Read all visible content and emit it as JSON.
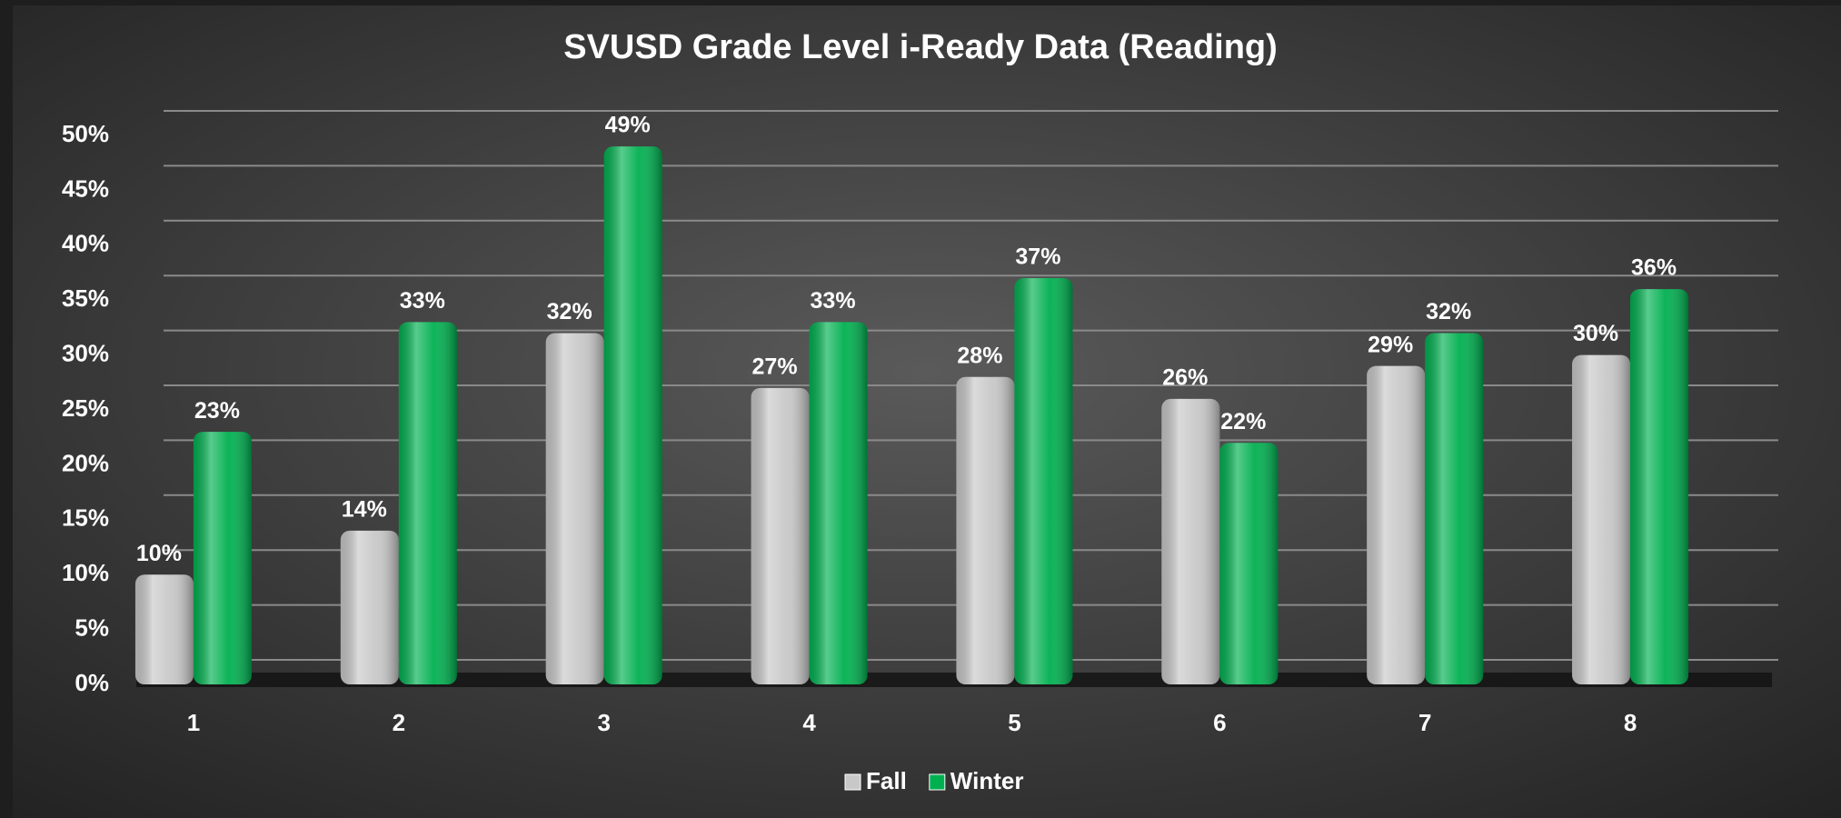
{
  "chart_data": {
    "type": "bar",
    "title": "SVUSD Grade Level i-Ready Data (Reading)",
    "categories": [
      "1",
      "2",
      "3",
      "4",
      "5",
      "6",
      "7",
      "8"
    ],
    "series": [
      {
        "name": "Fall",
        "color": "#c8c8c8",
        "values": [
          10,
          14,
          32,
          27,
          28,
          26,
          29,
          30
        ],
        "value_labels": [
          "10%",
          "14%",
          "32%",
          "27%",
          "28%",
          "26%",
          "29%",
          "30%"
        ]
      },
      {
        "name": "Winter",
        "color": "#00b050",
        "values": [
          23,
          33,
          49,
          33,
          37,
          22,
          32,
          36
        ],
        "value_labels": [
          "23%",
          "33%",
          "49%",
          "33%",
          "37%",
          "22%",
          "32%",
          "36%"
        ]
      }
    ],
    "ylim": [
      0,
      50
    ],
    "yticks": [
      {
        "value": 0,
        "label": "0%"
      },
      {
        "value": 5,
        "label": "5%"
      },
      {
        "value": 10,
        "label": "10%"
      },
      {
        "value": 15,
        "label": "15%"
      },
      {
        "value": 20,
        "label": "20%"
      },
      {
        "value": 25,
        "label": "25%"
      },
      {
        "value": 30,
        "label": "30%"
      },
      {
        "value": 35,
        "label": "35%"
      },
      {
        "value": 40,
        "label": "40%"
      },
      {
        "value": 45,
        "label": "45%"
      },
      {
        "value": 50,
        "label": "50%"
      }
    ],
    "grid": true,
    "legend": "bottom"
  }
}
